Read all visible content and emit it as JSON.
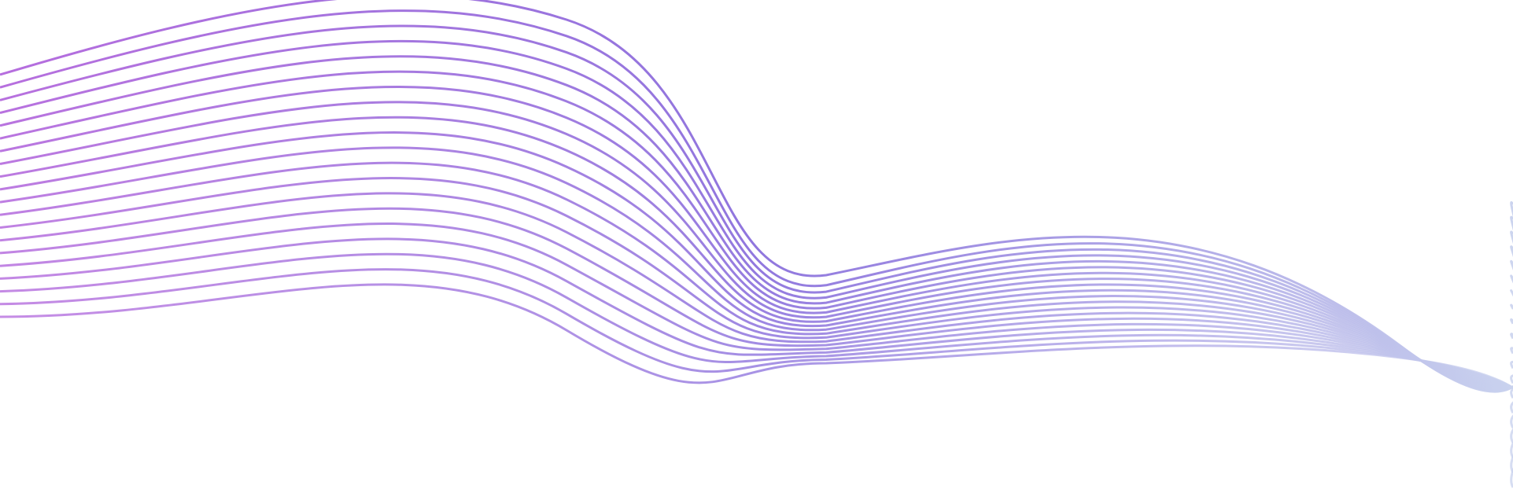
{
  "artwork": {
    "line_count": 20,
    "colors": {
      "background": "#ffffff",
      "start": "#b266dc",
      "mid": "#8a6fdc",
      "end": "#c9d2ee"
    }
  }
}
